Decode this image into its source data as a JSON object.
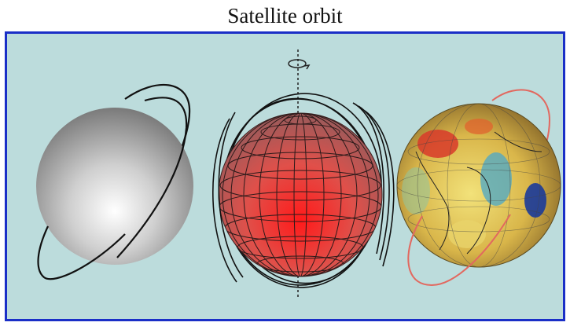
{
  "title": "Satellite orbit",
  "colors": {
    "frame": "#1a2fc7",
    "background": "#bcdcdc",
    "orbit_black": "#111111",
    "orbit_red": "#e2685f",
    "grid_sphere": "#d23b3b"
  },
  "figures": [
    {
      "name": "plain-sphere",
      "description_visible": false
    },
    {
      "name": "gridded-sphere",
      "description_visible": false
    },
    {
      "name": "geoid-globe",
      "description_visible": false
    }
  ]
}
